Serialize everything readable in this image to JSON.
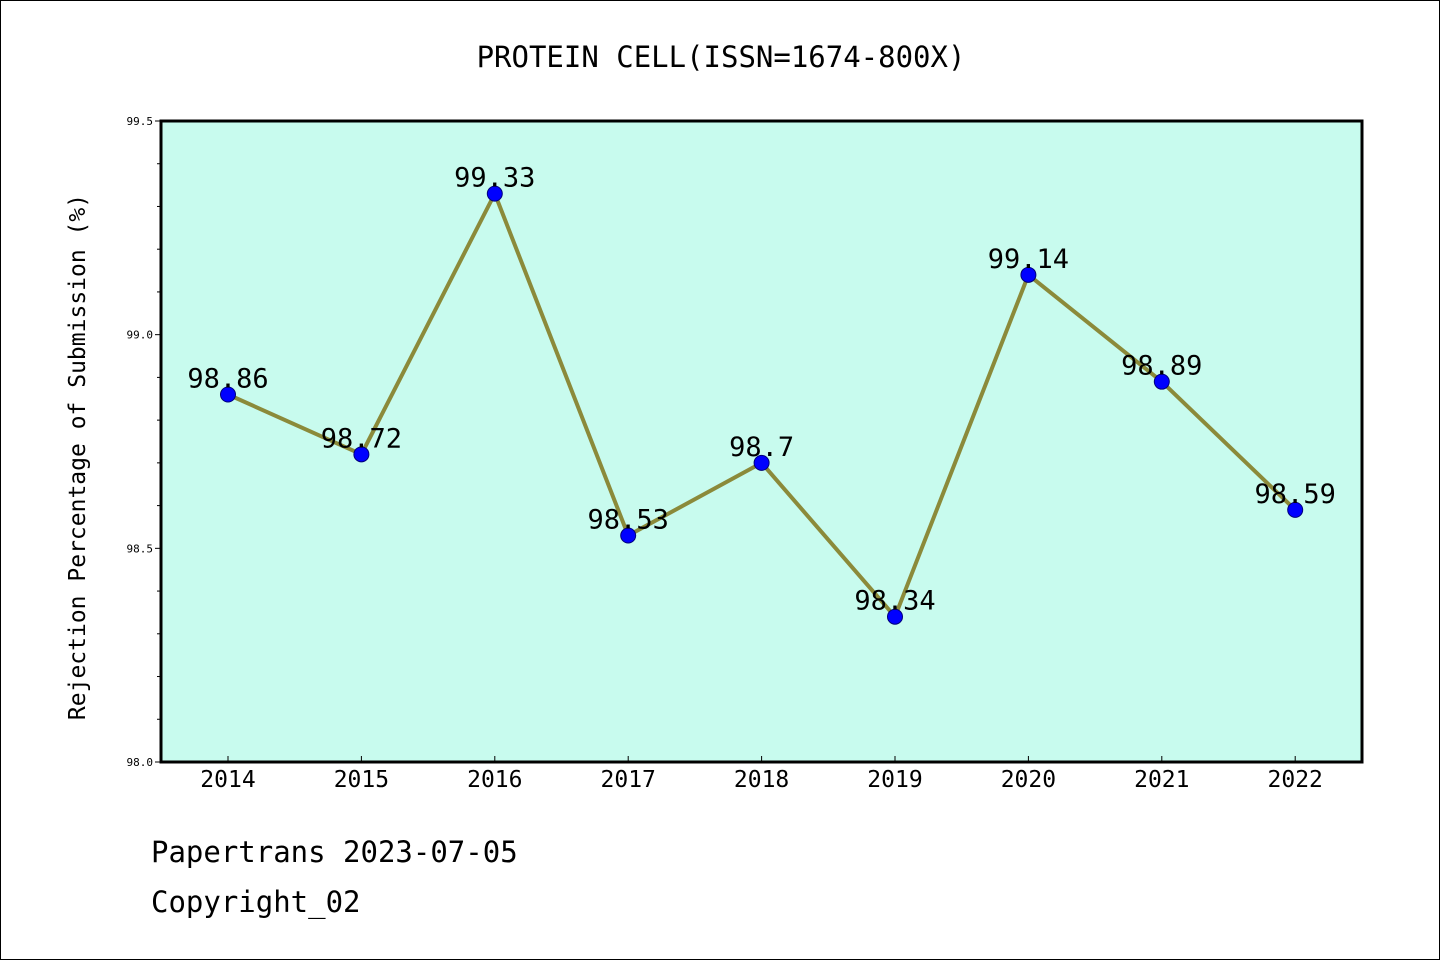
{
  "chart_data": {
    "type": "line",
    "title": "PROTEIN CELL(ISSN=1674-800X)",
    "xlabel": "",
    "ylabel": "Rejection Percentage of Submission (%)",
    "categories": [
      "2014",
      "2015",
      "2016",
      "2017",
      "2018",
      "2019",
      "2020",
      "2021",
      "2022"
    ],
    "series": [
      {
        "values": [
          98.86,
          98.72,
          99.33,
          98.53,
          98.7,
          98.34,
          99.14,
          98.89,
          98.59
        ],
        "data_labels": [
          "98.86",
          "98.72",
          "99.33",
          "98.53",
          "98.7",
          "98.34",
          "99.14",
          "98.89",
          "98.59"
        ]
      }
    ],
    "ylim": [
      98.0,
      99.5
    ],
    "yticks": [
      "98.0",
      "98.5",
      "99.0",
      "99.5"
    ],
    "yminor_step": 0.1,
    "grid": false,
    "colors": {
      "plot_background": "#c8fbee",
      "line": "#8b8a3a",
      "marker": "#0000ff",
      "axes": "#000000"
    }
  },
  "footer": {
    "line1": "Papertrans 2023-07-05",
    "line2": "Copyright_02"
  }
}
